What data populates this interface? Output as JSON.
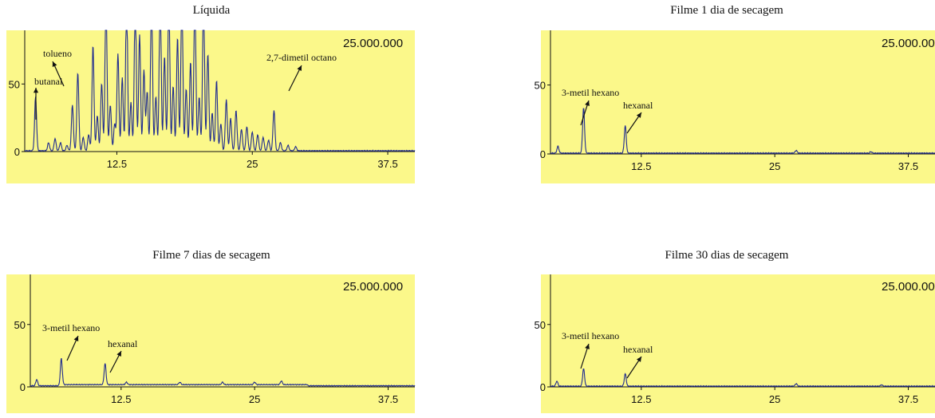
{
  "chart_data": [
    {
      "type": "line",
      "title": "Líquida",
      "scale_label": "25.000.000",
      "xlim": [
        4,
        40
      ],
      "ylim": [
        -3,
        85
      ],
      "xticks": [
        12.5,
        25,
        37.5
      ],
      "xtick_labels": [
        "12.5",
        "25",
        "37.5"
      ],
      "yticks": [
        0,
        50
      ],
      "ytick_labels": [
        "0",
        "50"
      ],
      "peaks": [
        [
          5.0,
          40
        ],
        [
          6.2,
          6
        ],
        [
          6.8,
          9
        ],
        [
          7.3,
          6
        ],
        [
          7.9,
          4
        ],
        [
          8.4,
          34
        ],
        [
          8.9,
          58
        ],
        [
          9.4,
          10
        ],
        [
          9.9,
          12
        ],
        [
          10.3,
          78
        ],
        [
          10.7,
          26
        ],
        [
          11.1,
          50
        ],
        [
          11.5,
          120
        ],
        [
          11.9,
          34
        ],
        [
          12.3,
          20
        ],
        [
          12.6,
          72
        ],
        [
          13.0,
          54
        ],
        [
          13.4,
          120
        ],
        [
          13.8,
          36
        ],
        [
          14.2,
          120
        ],
        [
          14.6,
          86
        ],
        [
          15.0,
          60
        ],
        [
          15.3,
          44
        ],
        [
          15.7,
          120
        ],
        [
          16.1,
          40
        ],
        [
          16.5,
          120
        ],
        [
          16.9,
          70
        ],
        [
          17.3,
          120
        ],
        [
          17.7,
          48
        ],
        [
          18.1,
          84
        ],
        [
          18.5,
          120
        ],
        [
          18.9,
          46
        ],
        [
          19.3,
          66
        ],
        [
          19.7,
          120
        ],
        [
          20.1,
          40
        ],
        [
          20.5,
          120
        ],
        [
          20.9,
          72
        ],
        [
          21.3,
          28
        ],
        [
          21.7,
          52
        ],
        [
          22.1,
          20
        ],
        [
          22.6,
          38
        ],
        [
          23.0,
          24
        ],
        [
          23.5,
          30
        ],
        [
          24.0,
          16
        ],
        [
          24.5,
          18
        ],
        [
          25.0,
          14
        ],
        [
          25.5,
          12
        ],
        [
          26.0,
          10
        ],
        [
          26.5,
          8
        ],
        [
          27.0,
          30
        ],
        [
          27.6,
          6
        ],
        [
          28.3,
          4
        ],
        [
          29.0,
          3
        ]
      ],
      "annotations": [
        {
          "text": "butanal"
        },
        {
          "text": "tolueno"
        },
        {
          "text": "2,7-dimetil octano"
        }
      ]
    },
    {
      "type": "line",
      "title": "Filme 1 dia de secagem",
      "scale_label": "25.000.000",
      "xlim": [
        4,
        40
      ],
      "ylim": [
        -3,
        85
      ],
      "xticks": [
        12.5,
        25,
        37.5
      ],
      "xtick_labels": [
        "12.5",
        "25",
        "37.5"
      ],
      "yticks": [
        0,
        50
      ],
      "ytick_labels": [
        "0",
        "50"
      ],
      "peaks": [
        [
          4.7,
          5
        ],
        [
          7.1,
          33
        ],
        [
          11.0,
          20
        ],
        [
          27.0,
          2
        ],
        [
          34.0,
          1
        ]
      ],
      "annotations": [
        {
          "text": "3-metil hexano"
        },
        {
          "text": "hexanal"
        }
      ]
    },
    {
      "type": "line",
      "title": "Filme 7 dias de secagem",
      "scale_label": "25.000.000",
      "xlim": [
        4,
        40
      ],
      "ylim": [
        -3,
        85
      ],
      "xticks": [
        12.5,
        25,
        37.5
      ],
      "xtick_labels": [
        "12.5",
        "25",
        "37.5"
      ],
      "yticks": [
        0,
        50
      ],
      "ytick_labels": [
        "0",
        "50"
      ],
      "peaks": [
        [
          4.6,
          5
        ],
        [
          6.9,
          22
        ],
        [
          11.0,
          17
        ],
        [
          13.0,
          2
        ],
        [
          18.0,
          2
        ],
        [
          22.0,
          2
        ],
        [
          25.0,
          2
        ],
        [
          27.5,
          3
        ]
      ],
      "annotations": [
        {
          "text": "3-metil hexano"
        },
        {
          "text": "hexanal"
        }
      ]
    },
    {
      "type": "line",
      "title": "Filme 30 dias de secagem",
      "scale_label": "25.000.000",
      "xlim": [
        4,
        40
      ],
      "ylim": [
        -3,
        85
      ],
      "xticks": [
        12.5,
        25,
        37.5
      ],
      "xtick_labels": [
        "12.5",
        "25",
        "37.5"
      ],
      "yticks": [
        0,
        50
      ],
      "ytick_labels": [
        "0",
        "50"
      ],
      "peaks": [
        [
          4.6,
          4
        ],
        [
          7.1,
          14
        ],
        [
          11.0,
          10
        ],
        [
          27.0,
          2
        ],
        [
          35.0,
          1
        ]
      ],
      "annotations": [
        {
          "text": "3-metil hexano"
        },
        {
          "text": "hexanal"
        }
      ]
    }
  ]
}
